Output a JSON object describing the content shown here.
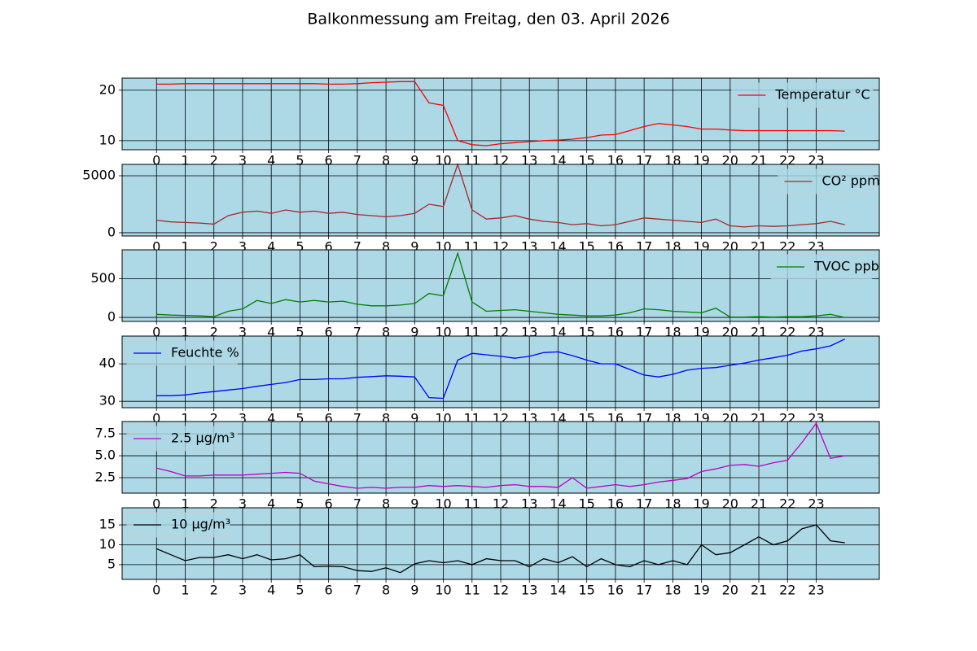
{
  "title": "Balkonmessung am Freitag, den 03. April 2026",
  "chart_data": [
    {
      "type": "line",
      "x": [
        0,
        0.5,
        1,
        1.5,
        2,
        2.5,
        3,
        3.5,
        4,
        4.5,
        5,
        5.5,
        6,
        6.5,
        7,
        7.5,
        8,
        8.5,
        9,
        9.5,
        10,
        10.5,
        11,
        11.5,
        12,
        12.5,
        13,
        13.5,
        14,
        14.5,
        15,
        15.5,
        16,
        16.5,
        17,
        17.5,
        18,
        18.5,
        19,
        19.5,
        20,
        20.5,
        21,
        21.5,
        22,
        22.5,
        23,
        23.5,
        24
      ],
      "series": [
        {
          "name": "Temperatur °C",
          "color": "#ff0000",
          "values": [
            21.2,
            21.2,
            21.3,
            21.3,
            21.3,
            21.3,
            21.3,
            21.3,
            21.3,
            21.3,
            21.3,
            21.3,
            21.2,
            21.2,
            21.3,
            21.5,
            21.6,
            21.7,
            21.7,
            17.5,
            17,
            10,
            9.2,
            9,
            9.4,
            9.6,
            9.8,
            10,
            10.1,
            10.3,
            10.6,
            11.1,
            11.2,
            12,
            12.8,
            13.4,
            13.1,
            12.8,
            12.3,
            12.3,
            12.1,
            12,
            12,
            12,
            12,
            12,
            12,
            12,
            11.9
          ]
        }
      ],
      "xlim": [
        -1.2,
        25.2
      ],
      "xticks": [
        0,
        1,
        2,
        3,
        4,
        5,
        6,
        7,
        8,
        9,
        10,
        11,
        12,
        13,
        14,
        15,
        16,
        17,
        18,
        19,
        20,
        21,
        22,
        23
      ],
      "ylim": [
        8.2,
        22.4
      ],
      "yticks": [
        10,
        20
      ],
      "grid": true,
      "legend": "upper right"
    },
    {
      "type": "line",
      "x": [
        0,
        0.5,
        1,
        1.5,
        2,
        2.5,
        3,
        3.5,
        4,
        4.5,
        5,
        5.5,
        6,
        6.5,
        7,
        7.5,
        8,
        8.5,
        9,
        9.5,
        10,
        10.5,
        11,
        11.5,
        12,
        12.5,
        13,
        13.5,
        14,
        14.5,
        15,
        15.5,
        16,
        16.5,
        17,
        17.5,
        18,
        18.5,
        19,
        19.5,
        20,
        20.5,
        21,
        21.5,
        22,
        22.5,
        23,
        23.5,
        24
      ],
      "series": [
        {
          "name": "CO² ppm",
          "color": "#a52a2a",
          "values": [
            1100,
            950,
            900,
            850,
            750,
            1500,
            1800,
            1900,
            1700,
            2000,
            1800,
            1900,
            1700,
            1800,
            1600,
            1500,
            1400,
            1500,
            1700,
            2500,
            2300,
            6000,
            2000,
            1200,
            1300,
            1500,
            1200,
            1000,
            900,
            700,
            800,
            600,
            700,
            1000,
            1300,
            1200,
            1100,
            1000,
            900,
            1200,
            600,
            500,
            600,
            550,
            600,
            700,
            800,
            1000,
            700
          ]
        }
      ],
      "xlim": [
        -1.2,
        25.2
      ],
      "xticks": [
        0,
        1,
        2,
        3,
        4,
        5,
        6,
        7,
        8,
        9,
        10,
        11,
        12,
        13,
        14,
        15,
        16,
        17,
        18,
        19,
        20,
        21,
        22,
        23
      ],
      "ylim": [
        -290,
        6000
      ],
      "yticks": [
        0,
        5000
      ],
      "grid": true,
      "legend": "upper right"
    },
    {
      "type": "line",
      "x": [
        0,
        0.5,
        1,
        1.5,
        2,
        2.5,
        3,
        3.5,
        4,
        4.5,
        5,
        5.5,
        6,
        6.5,
        7,
        7.5,
        8,
        8.5,
        9,
        9.5,
        10,
        10.5,
        11,
        11.5,
        12,
        12.5,
        13,
        13.5,
        14,
        14.5,
        15,
        15.5,
        16,
        16.5,
        17,
        17.5,
        18,
        18.5,
        19,
        19.5,
        20,
        20.5,
        21,
        21.5,
        22,
        22.5,
        23,
        23.5,
        24
      ],
      "series": [
        {
          "name": "TVOC ppb",
          "color": "#008000",
          "values": [
            40,
            30,
            25,
            20,
            10,
            80,
            110,
            220,
            180,
            230,
            200,
            220,
            200,
            210,
            170,
            150,
            150,
            160,
            180,
            310,
            280,
            830,
            200,
            80,
            90,
            100,
            80,
            60,
            40,
            30,
            20,
            20,
            30,
            60,
            110,
            100,
            80,
            70,
            60,
            120,
            5,
            5,
            10,
            5,
            10,
            10,
            20,
            40,
            0
          ]
        }
      ],
      "xlim": [
        -1.2,
        25.2
      ],
      "xticks": [
        0,
        1,
        2,
        3,
        4,
        5,
        6,
        7,
        8,
        9,
        10,
        11,
        12,
        13,
        14,
        15,
        16,
        17,
        18,
        19,
        20,
        21,
        22,
        23
      ],
      "ylim": [
        -52,
        875
      ],
      "yticks": [
        0,
        500
      ],
      "grid": true,
      "legend": "upper right"
    },
    {
      "type": "line",
      "x": [
        0,
        0.5,
        1,
        1.5,
        2,
        2.5,
        3,
        3.5,
        4,
        4.5,
        5,
        5.5,
        6,
        6.5,
        7,
        7.5,
        8,
        8.5,
        9,
        9.5,
        10,
        10.5,
        11,
        11.5,
        12,
        12.5,
        13,
        13.5,
        14,
        14.5,
        15,
        15.5,
        16,
        16.5,
        17,
        17.5,
        18,
        18.5,
        19,
        19.5,
        20,
        20.5,
        21,
        21.5,
        22,
        22.5,
        23,
        23.5,
        24
      ],
      "series": [
        {
          "name": "Feuchte %",
          "color": "#0000ff",
          "values": [
            31.5,
            31.5,
            31.7,
            32.2,
            32.6,
            33,
            33.4,
            34,
            34.5,
            35,
            35.8,
            35.8,
            36,
            36,
            36.4,
            36.6,
            36.8,
            36.7,
            36.5,
            31,
            30.8,
            41,
            42.8,
            42.4,
            42,
            41.5,
            42,
            43,
            43.2,
            42.2,
            41,
            40,
            40,
            38.5,
            37,
            36.5,
            37.2,
            38.3,
            38.8,
            39,
            39.6,
            40.2,
            41,
            41.6,
            42.3,
            43.4,
            44,
            44.8,
            46.6
          ]
        }
      ],
      "xlim": [
        -1.2,
        25.2
      ],
      "xticks": [
        0,
        1,
        2,
        3,
        4,
        5,
        6,
        7,
        8,
        9,
        10,
        11,
        12,
        13,
        14,
        15,
        16,
        17,
        18,
        19,
        20,
        21,
        22,
        23
      ],
      "ylim": [
        28.3,
        47.4
      ],
      "yticks": [
        30,
        40
      ],
      "grid": true,
      "legend": "upper left"
    },
    {
      "type": "line",
      "x": [
        0,
        0.5,
        1,
        1.5,
        2,
        2.5,
        3,
        3.5,
        4,
        4.5,
        5,
        5.5,
        6,
        6.5,
        7,
        7.5,
        8,
        8.5,
        9,
        9.5,
        10,
        10.5,
        11,
        11.5,
        12,
        12.5,
        13,
        13.5,
        14,
        14.5,
        15,
        15.5,
        16,
        16.5,
        17,
        17.5,
        18,
        18.5,
        19,
        19.5,
        20,
        20.5,
        21,
        21.5,
        22,
        22.5,
        23,
        23.5,
        24
      ],
      "series": [
        {
          "name": "2.5 µg/m³",
          "color": "#bf00bf",
          "values": [
            3.6,
            3.2,
            2.7,
            2.7,
            2.8,
            2.8,
            2.8,
            2.9,
            3,
            3.1,
            3,
            2.1,
            1.8,
            1.5,
            1.3,
            1.4,
            1.3,
            1.4,
            1.4,
            1.6,
            1.5,
            1.6,
            1.5,
            1.4,
            1.6,
            1.7,
            1.5,
            1.5,
            1.4,
            2.5,
            1.3,
            1.5,
            1.7,
            1.5,
            1.7,
            2,
            2.2,
            2.4,
            3.2,
            3.5,
            3.9,
            4,
            3.8,
            4.2,
            4.5,
            6.5,
            8.7,
            4.7,
            5
          ]
        }
      ],
      "xlim": [
        -1.2,
        25.2
      ],
      "xticks": [
        0,
        1,
        2,
        3,
        4,
        5,
        6,
        7,
        8,
        9,
        10,
        11,
        12,
        13,
        14,
        15,
        16,
        17,
        18,
        19,
        20,
        21,
        22,
        23
      ],
      "ylim": [
        0.74,
        8.9
      ],
      "yticks": [
        2.5,
        {
          "value": 5,
          "label": "5.0"
        },
        7.5
      ],
      "grid": true,
      "legend": "upper left"
    },
    {
      "type": "line",
      "x": [
        0,
        0.5,
        1,
        1.5,
        2,
        2.5,
        3,
        3.5,
        4,
        4.5,
        5,
        5.5,
        6,
        6.5,
        7,
        7.5,
        8,
        8.5,
        9,
        9.5,
        10,
        10.5,
        11,
        11.5,
        12,
        12.5,
        13,
        13.5,
        14,
        14.5,
        15,
        15.5,
        16,
        16.5,
        17,
        17.5,
        18,
        18.5,
        19,
        19.5,
        20,
        20.5,
        21,
        21.5,
        22,
        22.5,
        23,
        23.5,
        24
      ],
      "series": [
        {
          "name": "10 µg/m³",
          "color": "#000000",
          "values": [
            9,
            7.5,
            6,
            6.8,
            6.8,
            7.5,
            6.5,
            7.5,
            6.2,
            6.5,
            7.5,
            4.5,
            4.6,
            4.5,
            3.5,
            3.3,
            4.2,
            3,
            5.2,
            6,
            5.5,
            6,
            5,
            6.5,
            6,
            6,
            4.5,
            6.5,
            5.5,
            7,
            4.5,
            6.5,
            5,
            4.5,
            6,
            5,
            6,
            5,
            10,
            7.5,
            8,
            10,
            12,
            10,
            11,
            14,
            15,
            11,
            10.5
          ]
        }
      ],
      "xlim": [
        -1.2,
        25.2
      ],
      "xticks": [
        0,
        1,
        2,
        3,
        4,
        5,
        6,
        7,
        8,
        9,
        10,
        11,
        12,
        13,
        14,
        15,
        16,
        17,
        18,
        19,
        20,
        21,
        22,
        23
      ],
      "ylim": [
        1.3,
        19.3
      ],
      "yticks": [
        5,
        10,
        15
      ],
      "grid": true,
      "legend": "upper left"
    }
  ]
}
